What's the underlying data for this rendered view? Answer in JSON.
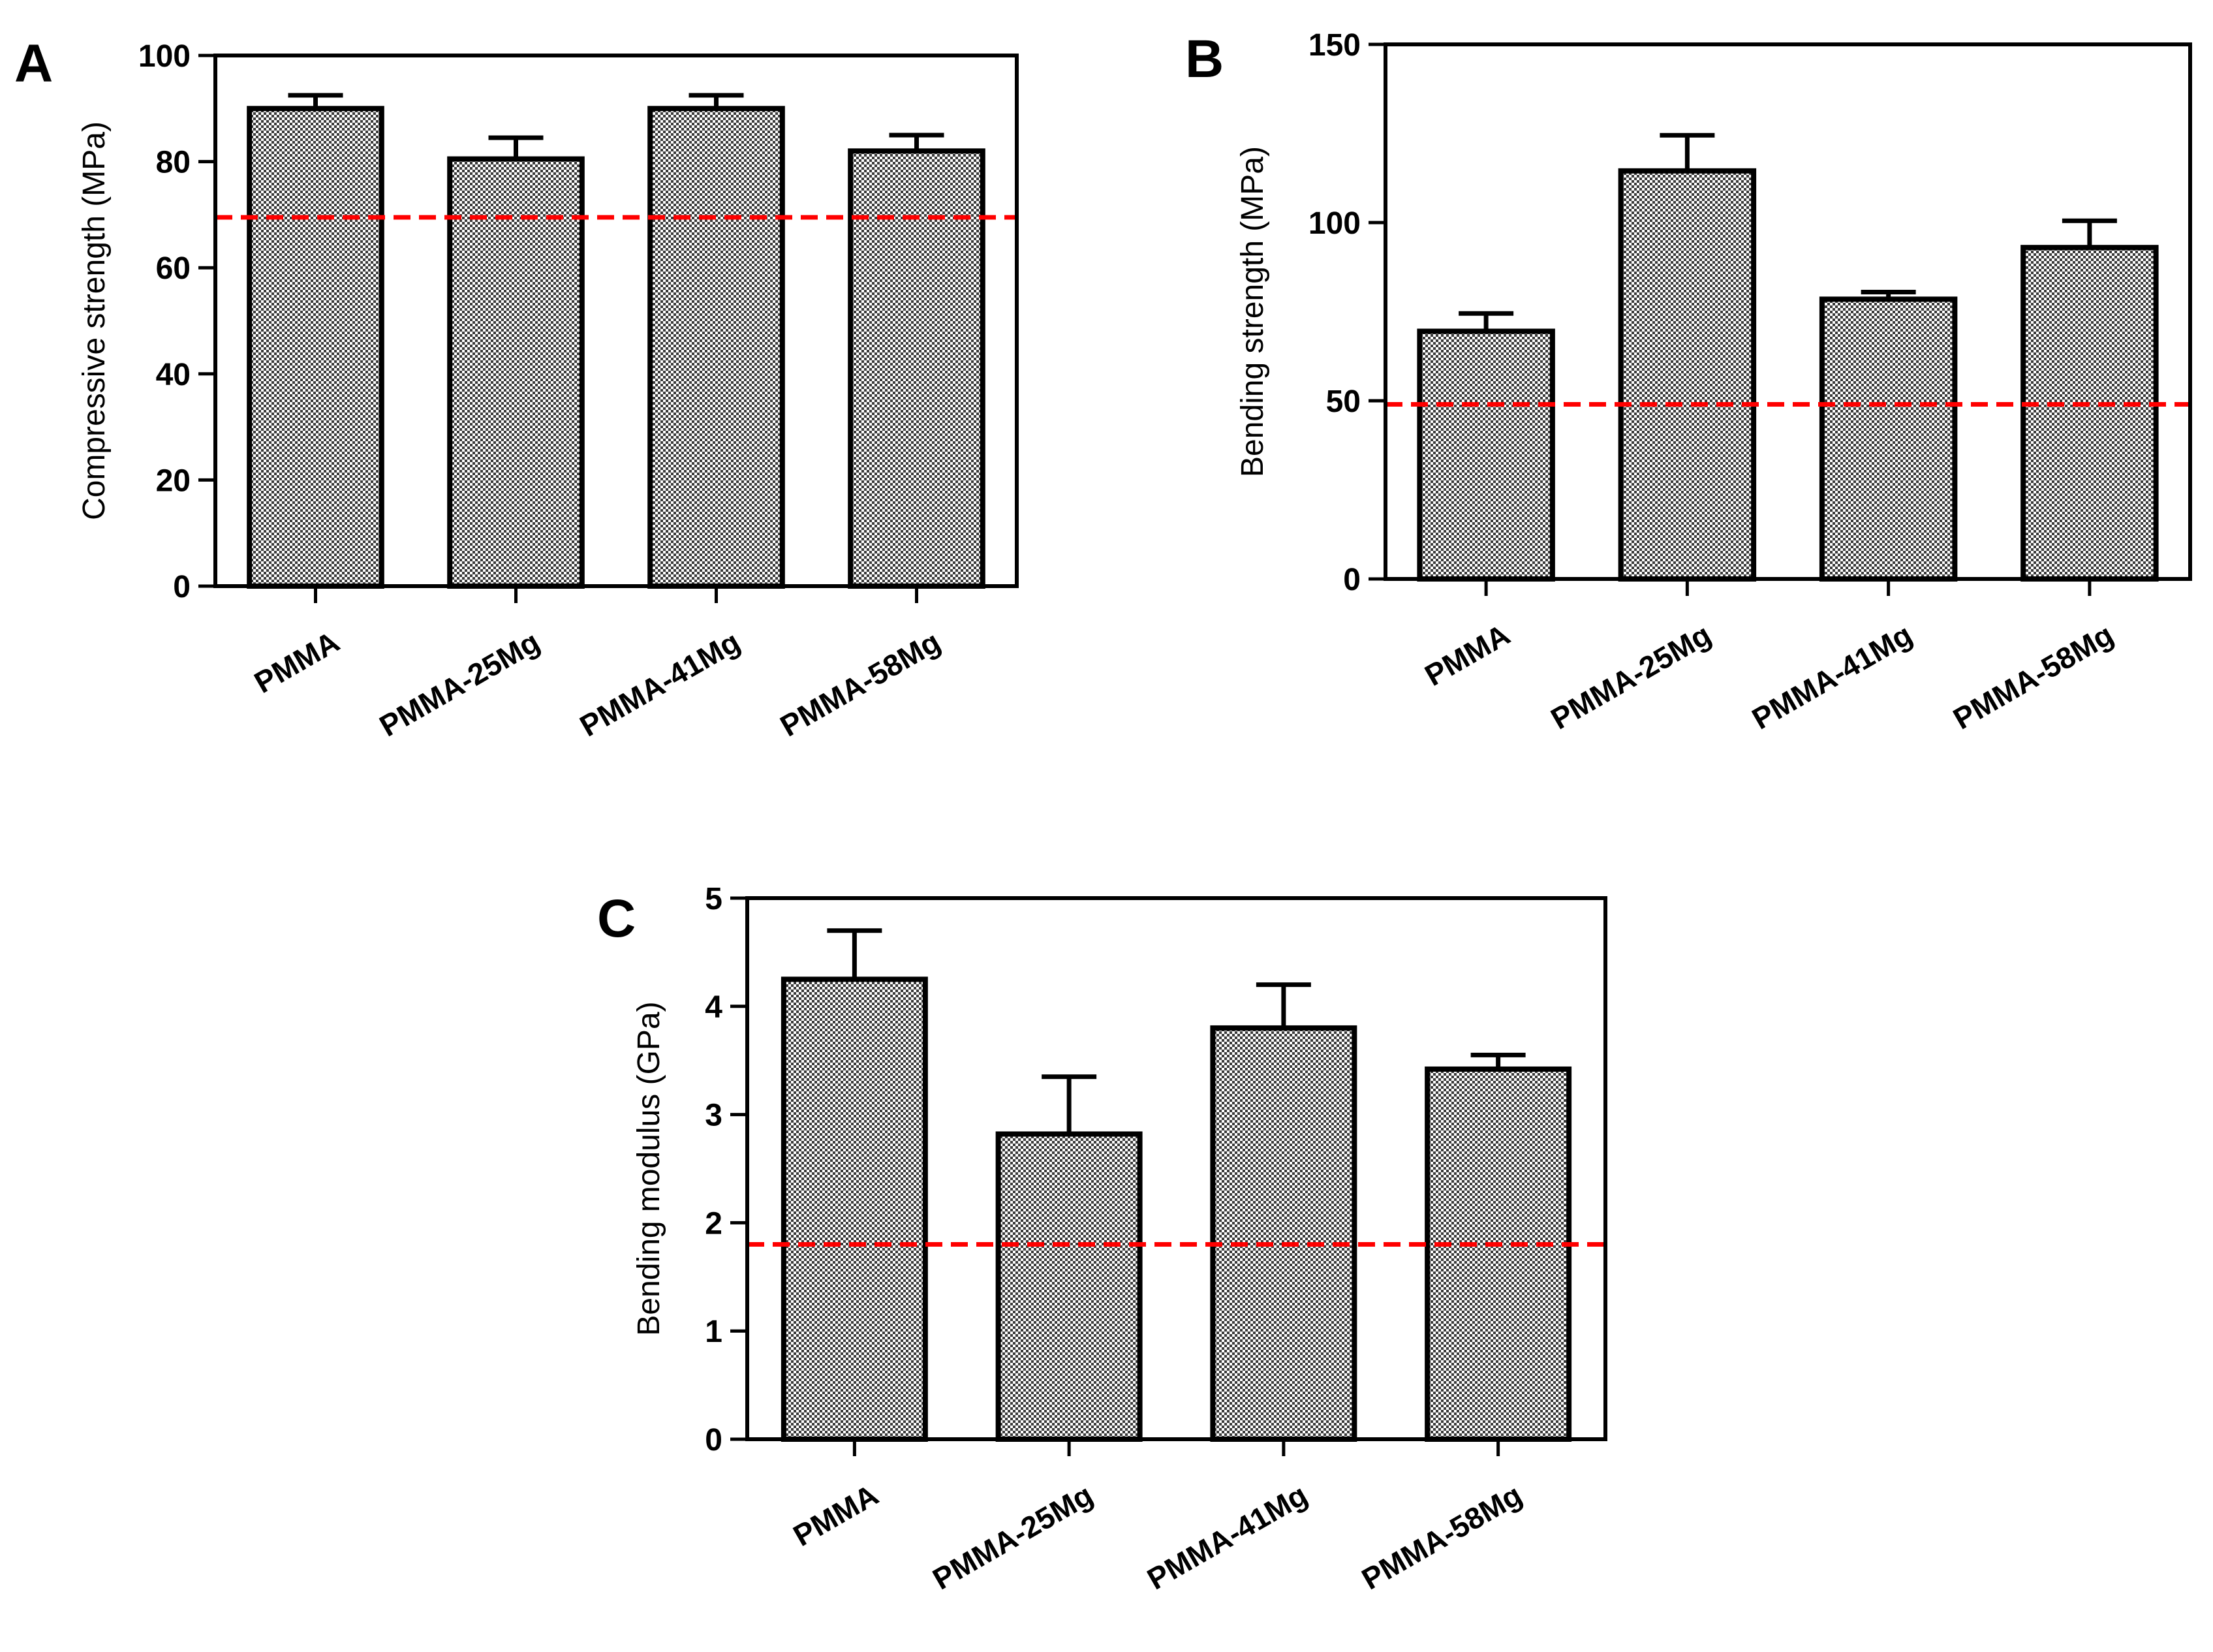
{
  "colors": {
    "bar_fill": "#a0a0a0",
    "bar_stroke": "#000000",
    "reference_line": "#ff0000"
  },
  "chart_data": [
    {
      "type": "bar",
      "panel_label": "A",
      "ylabel": "Compressive strength (MPa)",
      "xlabel": "",
      "title": "",
      "categories": [
        "PMMA",
        "PMMA-25Mg",
        "PMMA-41Mg",
        "PMMA-58Mg"
      ],
      "values": [
        90,
        80.5,
        90,
        82
      ],
      "errors": [
        2.5,
        4,
        2.5,
        3
      ],
      "reference_line": 69.5,
      "ylim": [
        0,
        100
      ],
      "yticks": [
        "0",
        "20",
        "40",
        "60",
        "80",
        "100"
      ],
      "grid": false
    },
    {
      "type": "bar",
      "panel_label": "B",
      "ylabel": "Bending strength (MPa)",
      "xlabel": "",
      "title": "",
      "categories": [
        "PMMA",
        "PMMA-25Mg",
        "PMMA-41Mg",
        "PMMA-58Mg"
      ],
      "values": [
        69.5,
        114.5,
        78.5,
        93
      ],
      "errors": [
        5,
        10,
        2,
        7.5
      ],
      "reference_line": 49,
      "ylim": [
        0,
        150
      ],
      "yticks": [
        "0",
        "50",
        "100",
        "150"
      ],
      "grid": false
    },
    {
      "type": "bar",
      "panel_label": "C",
      "ylabel": "Bending modulus (GPa)",
      "xlabel": "",
      "title": "",
      "categories": [
        "PMMA",
        "PMMA-25Mg",
        "PMMA-41Mg",
        "PMMA-58Mg"
      ],
      "values": [
        4.25,
        2.82,
        3.8,
        3.42
      ],
      "errors": [
        0.45,
        0.53,
        0.4,
        0.13
      ],
      "reference_line": 1.8,
      "ylim": [
        0,
        5
      ],
      "yticks": [
        "0",
        "1",
        "2",
        "3",
        "4",
        "5"
      ],
      "grid": false
    }
  ]
}
